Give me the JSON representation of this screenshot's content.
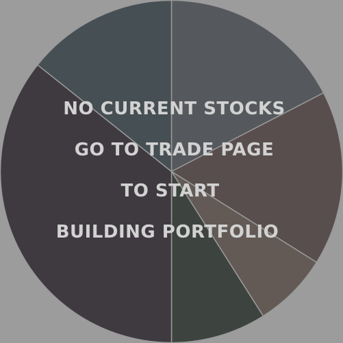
{
  "portfolio_chart": {
    "slices": [
      {
        "name": "slice-1",
        "fraction": 0.174,
        "color": "#55585d"
      },
      {
        "name": "slice-2",
        "fraction": 0.165,
        "color": "#574e4d"
      },
      {
        "name": "slice-3",
        "fraction": 0.071,
        "color": "#635a55"
      },
      {
        "name": "slice-4",
        "fraction": 0.09,
        "color": "#3d443f"
      },
      {
        "name": "slice-5",
        "fraction": 0.357,
        "color": "#3f3940"
      },
      {
        "name": "slice-6",
        "fraction": 0.143,
        "color": "#464f53"
      }
    ],
    "divider_color": "#9a9a9a"
  },
  "empty_message": {
    "lines": [
      "NO CURRENT STOCKS",
      "GO TO TRADE PAGE",
      "TO START",
      "BUILDING PORTFOLIO"
    ]
  }
}
